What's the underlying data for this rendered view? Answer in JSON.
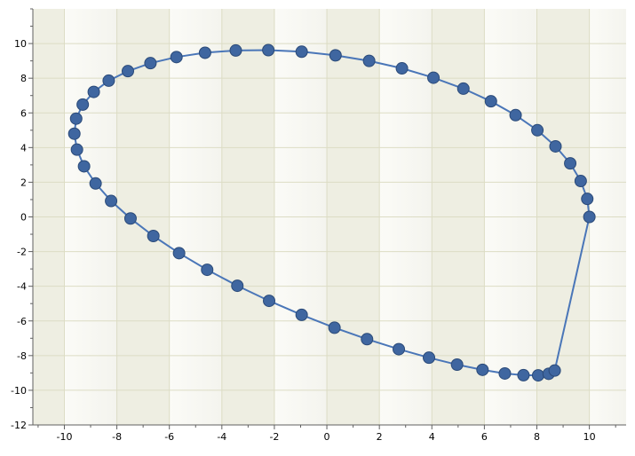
{
  "chart_data": {
    "type": "scatter",
    "title": "",
    "xlabel": "",
    "ylabel": "",
    "xlim": [
      -11.2,
      11.4
    ],
    "ylim": [
      -12,
      12
    ],
    "x_ticks": [
      -10,
      -8,
      -6,
      -4,
      -2,
      0,
      2,
      4,
      6,
      8,
      10
    ],
    "y_ticks": [
      -12,
      -10,
      -8,
      -6,
      -4,
      -2,
      0,
      2,
      4,
      6,
      8,
      10
    ],
    "grid": true,
    "legend": "none",
    "series": [
      {
        "color": "#3f66a0",
        "line_color": "#4a76b8",
        "points": [
          [
            10.0,
            0.0
          ],
          [
            9.92,
            1.04
          ],
          [
            9.67,
            2.07
          ],
          [
            9.27,
            3.09
          ],
          [
            8.71,
            4.07
          ],
          [
            8.02,
            5.0
          ],
          [
            7.19,
            5.87
          ],
          [
            6.25,
            6.67
          ],
          [
            5.2,
            7.4
          ],
          [
            4.06,
            8.03
          ],
          [
            2.86,
            8.57
          ],
          [
            1.61,
            9.0
          ],
          [
            0.33,
            9.32
          ],
          [
            -0.96,
            9.53
          ],
          [
            -2.23,
            9.62
          ],
          [
            -3.47,
            9.6
          ],
          [
            -4.64,
            9.47
          ],
          [
            -5.73,
            9.22
          ],
          [
            -6.72,
            8.87
          ],
          [
            -7.58,
            8.41
          ],
          [
            -8.31,
            7.86
          ],
          [
            -8.88,
            7.21
          ],
          [
            -9.3,
            6.48
          ],
          [
            -9.55,
            5.67
          ],
          [
            -9.62,
            4.8
          ],
          [
            -9.52,
            3.88
          ],
          [
            -9.25,
            2.92
          ],
          [
            -8.81,
            1.93
          ],
          [
            -8.22,
            0.92
          ],
          [
            -7.48,
            -0.09
          ],
          [
            -6.61,
            -1.1
          ],
          [
            -5.63,
            -2.09
          ],
          [
            -4.56,
            -3.05
          ],
          [
            -3.41,
            -3.97
          ],
          [
            -2.2,
            -4.84
          ],
          [
            -0.96,
            -5.65
          ],
          [
            0.29,
            -6.39
          ],
          [
            1.53,
            -7.05
          ],
          [
            2.74,
            -7.63
          ],
          [
            3.89,
            -8.12
          ],
          [
            4.96,
            -8.52
          ],
          [
            5.93,
            -8.82
          ],
          [
            6.78,
            -9.03
          ],
          [
            7.49,
            -9.13
          ],
          [
            8.05,
            -9.14
          ],
          [
            8.45,
            -9.05
          ],
          [
            8.68,
            -8.86
          ]
        ]
      }
    ]
  }
}
